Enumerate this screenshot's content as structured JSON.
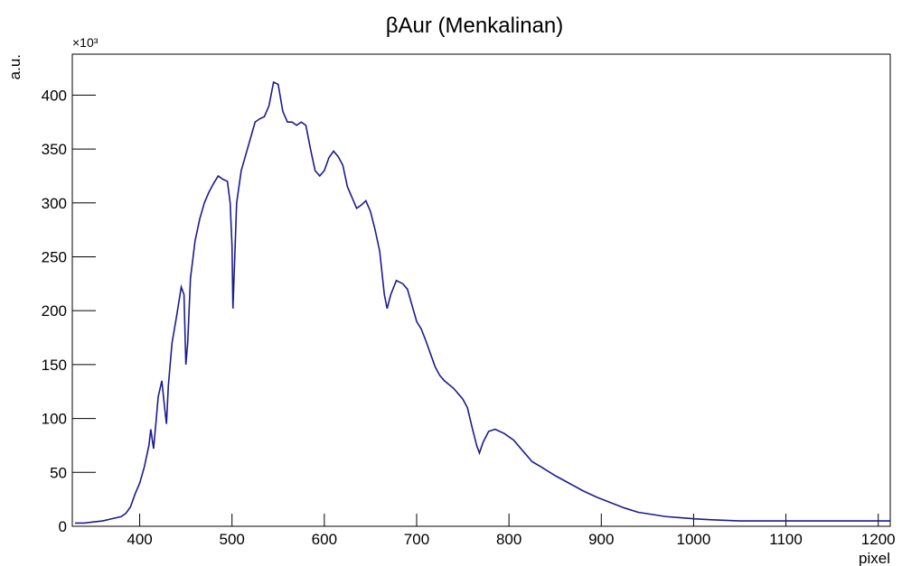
{
  "chart_data": {
    "type": "line",
    "title": "βAur (Menkalinan)",
    "x_label": "pixel",
    "y_label": "a.u.",
    "y_multiplier": "×10³",
    "color": "#1c1c8e",
    "x": [
      330,
      340,
      350,
      360,
      370,
      380,
      385,
      390,
      395,
      400,
      405,
      410,
      412,
      415,
      418,
      420,
      424,
      427,
      429,
      431,
      435,
      440,
      445,
      448,
      450,
      452,
      455,
      460,
      465,
      470,
      475,
      480,
      485,
      490,
      495,
      498,
      500,
      501,
      503,
      505,
      510,
      515,
      520,
      525,
      530,
      535,
      540,
      545,
      550,
      555,
      560,
      565,
      570,
      575,
      580,
      585,
      590,
      595,
      600,
      605,
      610,
      615,
      620,
      625,
      630,
      635,
      640,
      645,
      650,
      655,
      660,
      665,
      668,
      672,
      678,
      685,
      690,
      695,
      700,
      705,
      710,
      715,
      720,
      725,
      730,
      740,
      750,
      755,
      760,
      765,
      768,
      772,
      778,
      785,
      795,
      805,
      815,
      825,
      835,
      850,
      865,
      880,
      895,
      910,
      925,
      940,
      955,
      970,
      985,
      1000,
      1020,
      1050,
      1080,
      1110,
      1140,
      1170,
      1200,
      1213
    ],
    "values": [
      3,
      3,
      4,
      5,
      7,
      9,
      12,
      18,
      30,
      40,
      55,
      75,
      90,
      72,
      100,
      120,
      135,
      110,
      95,
      130,
      170,
      195,
      222,
      215,
      150,
      170,
      230,
      265,
      285,
      300,
      310,
      318,
      325,
      322,
      320,
      300,
      260,
      202,
      250,
      300,
      330,
      345,
      360,
      375,
      378,
      380,
      390,
      412,
      410,
      385,
      375,
      375,
      372,
      375,
      372,
      350,
      330,
      325,
      330,
      342,
      348,
      343,
      335,
      315,
      305,
      295,
      298,
      302,
      292,
      275,
      255,
      215,
      202,
      215,
      228,
      225,
      220,
      205,
      190,
      183,
      172,
      160,
      148,
      140,
      135,
      128,
      118,
      110,
      92,
      75,
      68,
      78,
      88,
      90,
      86,
      80,
      70,
      60,
      55,
      47,
      40,
      33,
      27,
      22,
      17,
      13,
      11,
      9,
      8,
      7,
      6,
      5,
      5,
      5,
      5,
      5,
      5,
      5
    ],
    "xlim": [
      327,
      1213
    ],
    "ylim": [
      0,
      438
    ],
    "xticks": [
      400,
      500,
      600,
      700,
      800,
      900,
      1000,
      1100,
      1200
    ],
    "yticks": [
      0,
      50,
      100,
      150,
      200,
      250,
      300,
      350,
      400
    ]
  }
}
